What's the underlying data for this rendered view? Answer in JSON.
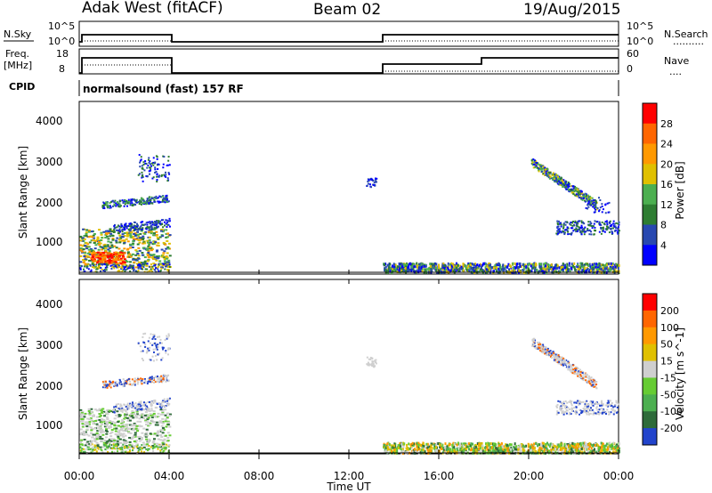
{
  "header": {
    "radar_title": "Adak West (fitACF)",
    "beam": "Beam 02",
    "date": "19/Aug/2015"
  },
  "panels": {
    "nsky_label": "N.Sky",
    "nsearch_label": "N.Search",
    "freq_label_line1": "Freq.",
    "freq_label_line2": "[MHz]",
    "nave_label": "Nave",
    "cpid_label": "CPID",
    "cpid_text": "normalsound (fast) 157 RF",
    "nsky_ticks": [
      "10^5",
      "10^0"
    ],
    "nsearch_ticks": [
      "10^5",
      "10^0"
    ],
    "freq_ticks": [
      "18",
      "8"
    ],
    "nave_ticks": [
      "60",
      "0"
    ],
    "nsearch_legend": "..........",
    "nave_legend": "...."
  },
  "xaxis": {
    "title": "Time UT",
    "ticks": [
      "00:00",
      "04:00",
      "08:00",
      "12:00",
      "16:00",
      "20:00",
      "00:00"
    ]
  },
  "colors": {
    "power_scale": [
      "#0000ff",
      "#2848b0",
      "#2e7d32",
      "#4caf50",
      "#e0c000",
      "#ff9900",
      "#ff6600",
      "#ff0000"
    ],
    "velocity_scale": [
      "#2244cc",
      "#2e6b3a",
      "#4caf50",
      "#66cc33",
      "#cfcfcf",
      "#e0c000",
      "#ff9900",
      "#ff6600",
      "#ff0000"
    ]
  },
  "chart_data": [
    {
      "type": "heatmap",
      "title": "",
      "xlabel": "Time UT",
      "ylabel": "Slant Range [km]",
      "xlim": [
        0,
        24
      ],
      "ylim": [
        180,
        4500
      ],
      "yticks": [
        "4000",
        "3000",
        "2000",
        "1000"
      ],
      "colorbar": {
        "label": "Power [dB]",
        "ticks": [
          "28",
          "24",
          "20",
          "16",
          "12",
          "8",
          "4"
        ]
      },
      "note_regions_hours_km": [
        {
          "t": [
            0.0,
            4.1
          ],
          "r": [
            500,
            1400
          ],
          "level": "12-28"
        },
        {
          "t": [
            1.0,
            4.0
          ],
          "r": [
            1800,
            2300
          ],
          "level": "4-12"
        },
        {
          "t": [
            2.5,
            4.0
          ],
          "r": [
            2800,
            3200
          ],
          "level": "4-8"
        },
        {
          "t": [
            12.8,
            13.2
          ],
          "r": [
            2400,
            2600
          ],
          "level": "4-8"
        },
        {
          "t": [
            13.5,
            24.0
          ],
          "r": [
            180,
            400
          ],
          "level": "4-16"
        },
        {
          "t": [
            20.0,
            23.0
          ],
          "r": [
            1900,
            3100
          ],
          "level": "4-12"
        },
        {
          "t": [
            21.0,
            24.0
          ],
          "r": [
            1200,
            1500
          ],
          "level": "4-8"
        }
      ]
    },
    {
      "type": "heatmap",
      "title": "",
      "xlabel": "Time UT",
      "ylabel": "Slant Range [km]",
      "xlim": [
        0,
        24
      ],
      "ylim": [
        180,
        4500
      ],
      "yticks": [
        "4000",
        "3000",
        "2000",
        "1000"
      ],
      "colorbar": {
        "label": "Velocity [m s^-1]",
        "ticks": [
          "200",
          "100",
          "50",
          "15",
          "-15",
          "-50",
          "-100",
          "-200"
        ]
      }
    }
  ]
}
